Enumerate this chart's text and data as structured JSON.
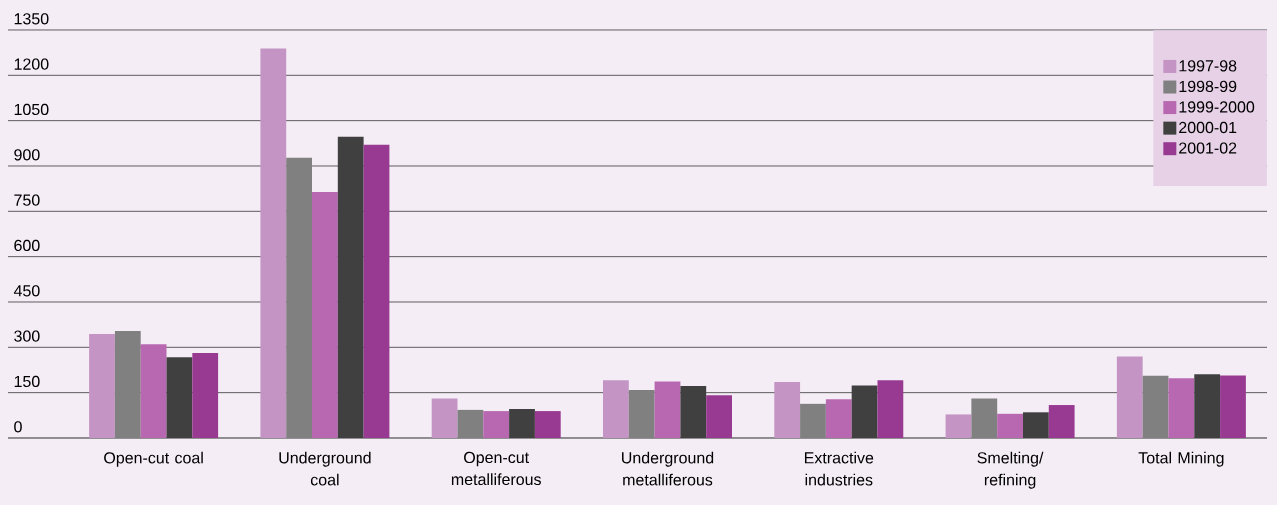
{
  "chart_data": {
    "type": "bar",
    "categories": [
      "Open-cut coal",
      "Underground coal",
      "Open-cut metalliferous",
      "Underground metalliferous",
      "Extractive industries",
      "Smelting/ refining",
      "Total Mining"
    ],
    "series": [
      {
        "name": "1997-98",
        "color": "#c495c4",
        "values": [
          344,
          1289,
          131,
          191,
          185,
          78,
          270
        ]
      },
      {
        "name": "1998-99",
        "color": "#808080",
        "values": [
          354,
          927,
          93,
          159,
          113,
          131,
          206
        ]
      },
      {
        "name": "1999-2000",
        "color": "#b868b0",
        "values": [
          310,
          814,
          89,
          187,
          128,
          80,
          198
        ]
      },
      {
        "name": "2000-01",
        "color": "#404040",
        "values": [
          267,
          997,
          96,
          172,
          174,
          85,
          211
        ]
      },
      {
        "name": "2001-02",
        "color": "#993a92",
        "values": [
          281,
          970,
          89,
          141,
          191,
          109,
          207
        ]
      }
    ],
    "ylim": [
      0,
      1350
    ],
    "yticks": [
      0,
      150,
      300,
      450,
      600,
      750,
      900,
      1050,
      1200,
      1350
    ],
    "grid": "y",
    "legend": "top right"
  }
}
